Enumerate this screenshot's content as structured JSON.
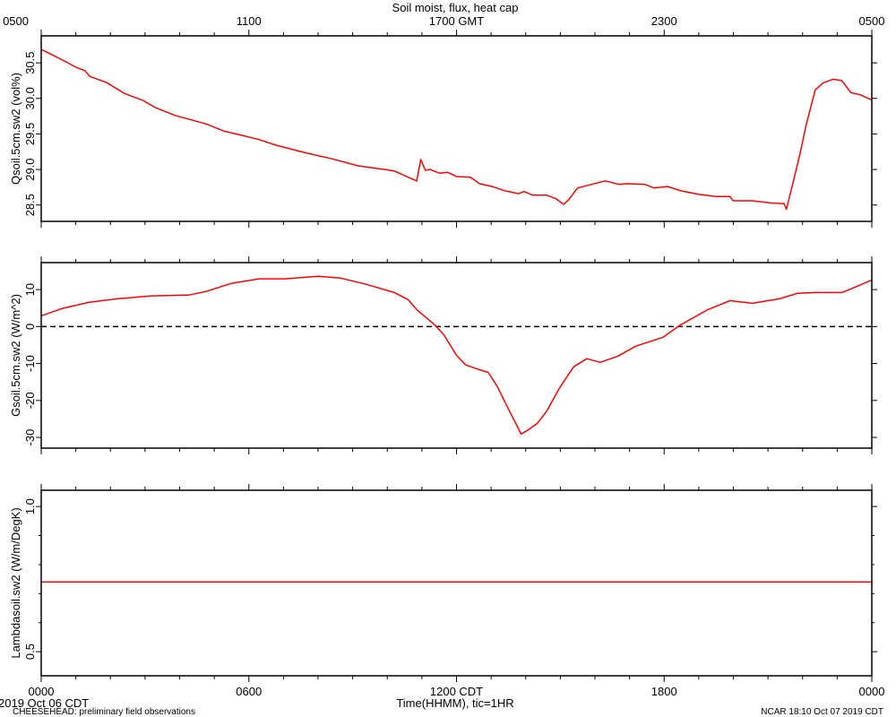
{
  "colors": {
    "series": "#ff0000",
    "axis": "#000000",
    "background": "#ffffff"
  },
  "footer": {
    "date": "2019 Oct 06 CDT",
    "project": "CHEESEHEAD: preliminary field observations",
    "stamp": "NCAR 18:10 Oct 07 2019 CDT"
  },
  "chart_data": [
    {
      "type": "line",
      "title": "Soil moist, flux, heat cap",
      "ylabel": "Qsoil.5cm.sw2 (vol%)",
      "xlim": [
        "0000",
        "2400"
      ],
      "ylim": [
        28.27,
        30.88
      ],
      "yticks": [
        28.5,
        29.0,
        29.5,
        30.0,
        30.5
      ],
      "ytick_labels": [
        "28.5",
        "29.0",
        "29.5",
        "30.0",
        "30.5"
      ],
      "xtick_labels_top": [
        {
          "x": "0000",
          "label": "0500"
        },
        {
          "x": "0600",
          "label": "1100"
        },
        {
          "x": "1200",
          "label": "1700 GMT"
        },
        {
          "x": "1800",
          "label": "2300"
        },
        {
          "x": "2400",
          "label": "0500"
        }
      ],
      "grid": false,
      "series": [
        {
          "x": [
            "0000",
            "0022",
            "0037",
            "0100",
            "0116",
            "0124",
            "0154",
            "0224",
            "0257",
            "0318",
            "0352",
            "0415",
            "0446",
            "0517",
            "0548",
            "0618",
            "0648",
            "0736",
            "0824",
            "0910",
            "0956",
            "1012",
            "1042",
            "1051",
            "1058",
            "1106",
            "1114",
            "1130",
            "1145",
            "1200",
            "1224",
            "1240",
            "1302",
            "1324",
            "1348",
            "1357",
            "1412",
            "1436",
            "1452",
            "1506",
            "1515",
            "1530",
            "1554",
            "1618",
            "1642",
            "1656",
            "1727",
            "1742",
            "1806",
            "1829",
            "1900",
            "1930",
            "1954",
            "2000",
            "2033",
            "2104",
            "2128",
            "2132",
            "2143",
            "2156",
            "2206",
            "2222",
            "2236",
            "2253",
            "2308",
            "2324",
            "2340",
            "2400"
          ],
          "values": [
            30.69,
            30.6,
            30.54,
            30.44,
            30.39,
            30.31,
            30.22,
            30.07,
            29.97,
            29.87,
            29.76,
            29.71,
            29.64,
            29.54,
            29.48,
            29.42,
            29.34,
            29.24,
            29.15,
            29.05,
            29.0,
            28.98,
            28.87,
            28.84,
            29.14,
            28.99,
            29.0,
            28.95,
            28.96,
            28.9,
            28.89,
            28.8,
            28.76,
            28.7,
            28.66,
            28.69,
            28.64,
            28.64,
            28.59,
            28.51,
            28.58,
            28.74,
            28.79,
            28.84,
            28.79,
            28.8,
            28.79,
            28.74,
            28.76,
            28.7,
            28.65,
            28.62,
            28.62,
            28.56,
            28.56,
            28.53,
            28.52,
            28.44,
            28.8,
            29.24,
            29.62,
            30.12,
            30.22,
            30.27,
            30.25,
            30.08,
            30.05,
            29.98
          ]
        }
      ]
    },
    {
      "type": "line",
      "ylabel": "Gsoil.5cm.sw2 (W/m^2)",
      "xlim": [
        "0000",
        "2400"
      ],
      "ylim": [
        -32.9,
        17.3
      ],
      "yticks": [
        -30,
        -20,
        -10,
        0,
        10
      ],
      "ytick_labels": [
        "-30",
        "-20",
        "-10",
        "0",
        "10"
      ],
      "reference_lines": [
        {
          "y": 0,
          "style": "dashed"
        }
      ],
      "grid": false,
      "series": [
        {
          "x": [
            "0000",
            "0037",
            "0124",
            "0212",
            "0312",
            "0415",
            "0446",
            "0530",
            "0618",
            "0703",
            "0800",
            "0839",
            "0924",
            "1012",
            "1036",
            "1051",
            "1122",
            "1138",
            "1200",
            "1216",
            "1240",
            "1255",
            "1311",
            "1326",
            "1342",
            "1352",
            "1405",
            "1420",
            "1436",
            "1459",
            "1523",
            "1546",
            "1609",
            "1640",
            "1711",
            "1758",
            "1829",
            "1916",
            "1954",
            "2033",
            "2120",
            "2151",
            "2222",
            "2308",
            "2324",
            "2400"
          ],
          "values": [
            2.9,
            4.9,
            6.6,
            7.5,
            8.3,
            8.5,
            9.5,
            11.7,
            12.9,
            12.9,
            13.6,
            13.1,
            11.4,
            9.2,
            7.3,
            4.6,
            0.5,
            -2.2,
            -7.8,
            -10.4,
            -11.7,
            -12.4,
            -16.3,
            -21.1,
            -26.0,
            -29.1,
            -27.9,
            -26.2,
            -23.0,
            -16.5,
            -10.9,
            -8.7,
            -9.7,
            -8.0,
            -5.3,
            -2.9,
            0.5,
            4.6,
            7.0,
            6.3,
            7.5,
            9.0,
            9.2,
            9.2,
            10.2,
            12.6
          ]
        }
      ]
    },
    {
      "type": "line",
      "ylabel": "Lambdasoil.sw2 (W/m/DegK)",
      "xlabel": "Time(HHMM), tic=1HR",
      "xlim": [
        "0000",
        "2400"
      ],
      "ylim": [
        0.417,
        1.056
      ],
      "yticks": [
        0.5,
        1.0
      ],
      "ytick_labels": [
        "0.5",
        "1.0"
      ],
      "yticks_minor": [
        0.6,
        0.7,
        0.8,
        0.9
      ],
      "xtick_labels": [
        {
          "x": "0000",
          "label": "0000"
        },
        {
          "x": "0600",
          "label": "0600"
        },
        {
          "x": "1200",
          "label": "1200 CDT"
        },
        {
          "x": "1800",
          "label": "1800"
        },
        {
          "x": "2400",
          "label": "0000"
        }
      ],
      "grid": false,
      "series": [
        {
          "x": [
            "0000",
            "2400"
          ],
          "values": [
            0.74,
            0.74
          ]
        }
      ]
    }
  ]
}
